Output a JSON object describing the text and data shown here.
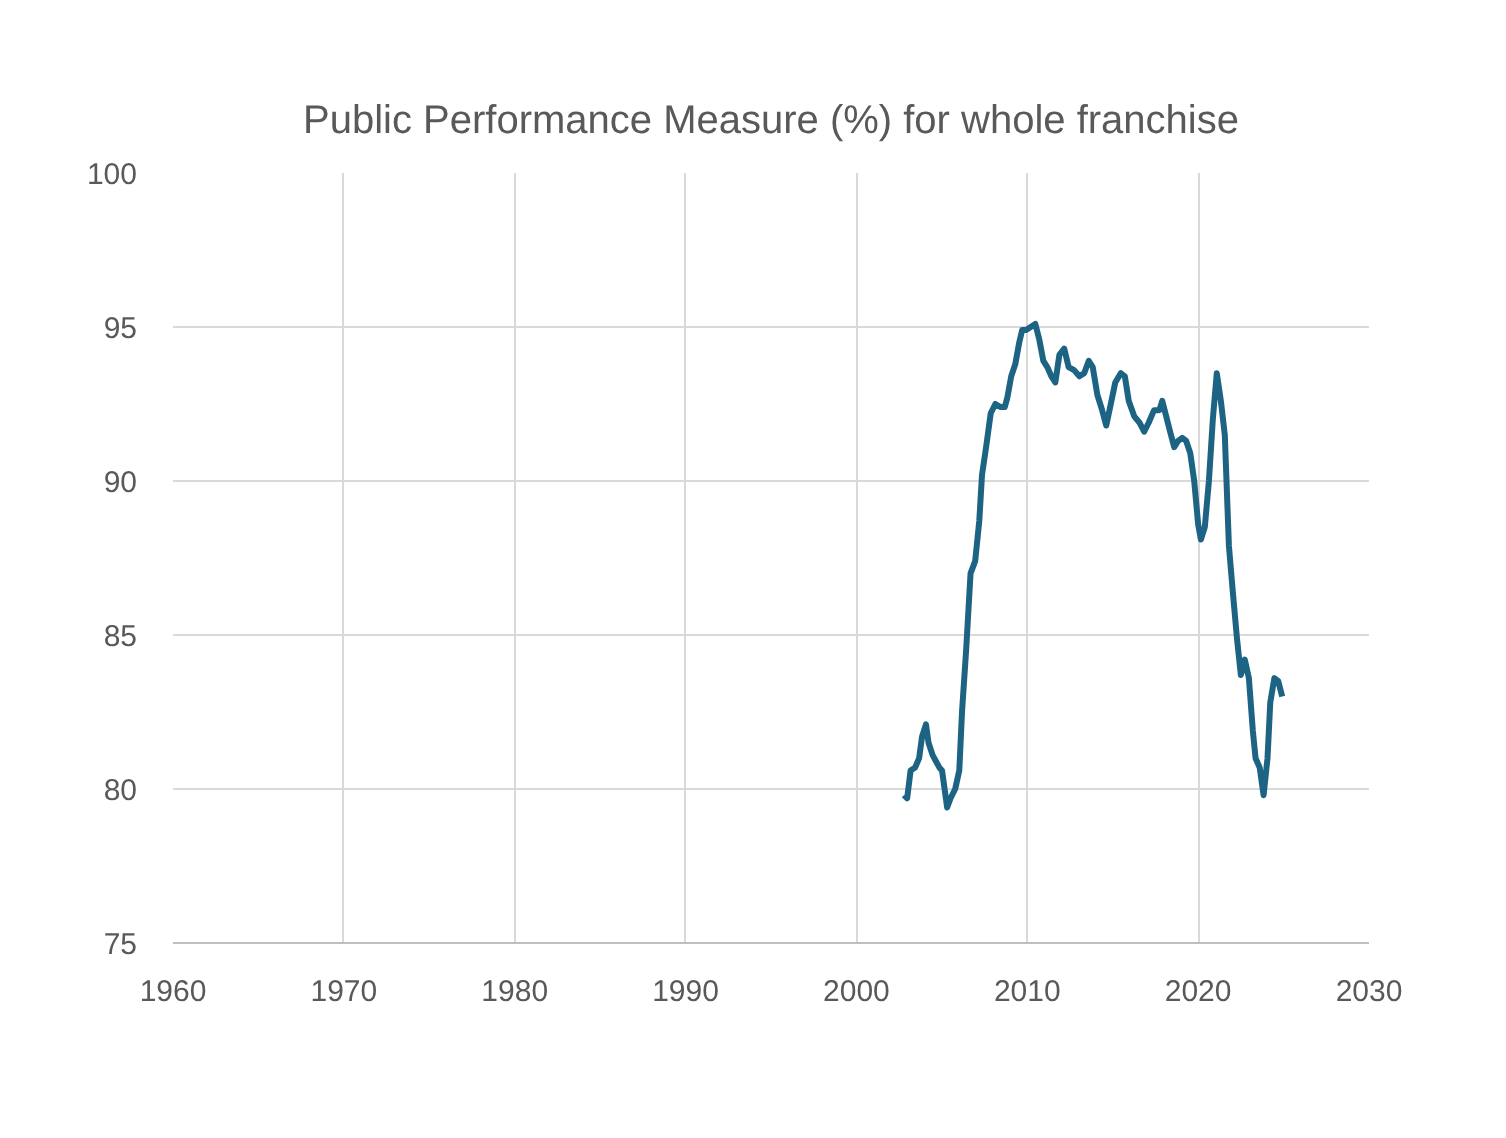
{
  "chart_data": {
    "type": "line",
    "title": "Public Performance Measure (%) for whole franchise",
    "x": [
      2002.78,
      2002.97,
      2003.17,
      2003.44,
      2003.67,
      2003.84,
      2004.07,
      2004.22,
      2004.46,
      2004.85,
      2005.01,
      2005.16,
      2005.31,
      2005.51,
      2005.78,
      2006.02,
      2006.18,
      2006.42,
      2006.68,
      2006.95,
      2007.19,
      2007.35,
      2007.59,
      2007.86,
      2008.13,
      2008.44,
      2008.68,
      2008.83,
      2009.06,
      2009.3,
      2009.53,
      2009.7,
      2009.93,
      2010.2,
      2010.47,
      2010.7,
      2010.94,
      2011.17,
      2011.41,
      2011.64,
      2011.88,
      2012.16,
      2012.42,
      2012.74,
      2013.05,
      2013.33,
      2013.6,
      2013.83,
      2014.1,
      2014.38,
      2014.62,
      2014.85,
      2015.15,
      2015.47,
      2015.71,
      2015.94,
      2016.26,
      2016.56,
      2016.84,
      2017.11,
      2017.42,
      2017.73,
      2017.9,
      2018.13,
      2018.36,
      2018.6,
      2018.83,
      2019.07,
      2019.3,
      2019.54,
      2019.77,
      2020.0,
      2020.16,
      2020.39,
      2020.63,
      2020.86,
      2021.09,
      2021.33,
      2021.56,
      2021.8,
      2022.03,
      2022.27,
      2022.5,
      2022.73,
      2022.97,
      2023.2,
      2023.36,
      2023.6,
      2023.83,
      2024.06,
      2024.22,
      2024.46,
      2024.69,
      2024.92
    ],
    "series": [
      {
        "color": "#1d6484",
        "values": [
          79.8,
          79.7,
          80.6,
          80.7,
          81.0,
          81.7,
          82.1,
          81.5,
          81.1,
          80.7,
          80.6,
          80.0,
          79.4,
          79.7,
          80.0,
          80.6,
          82.5,
          84.5,
          87.0,
          87.4,
          88.7,
          90.2,
          91.1,
          92.2,
          92.5,
          92.4,
          92.4,
          92.7,
          93.4,
          93.8,
          94.5,
          94.9,
          94.9,
          95.0,
          95.1,
          94.6,
          93.9,
          93.7,
          93.4,
          93.2,
          94.1,
          94.3,
          93.7,
          93.6,
          93.4,
          93.5,
          93.9,
          93.7,
          92.8,
          92.3,
          91.8,
          92.4,
          93.2,
          93.5,
          93.4,
          92.6,
          92.1,
          91.9,
          91.6,
          91.9,
          92.3,
          92.3,
          92.6,
          92.1,
          91.6,
          91.1,
          91.3,
          91.4,
          91.3,
          90.9,
          90.0,
          88.6,
          88.1,
          88.5,
          90.0,
          92.0,
          93.5,
          92.6,
          91.5,
          87.9,
          86.4,
          84.9,
          83.7,
          84.2,
          83.6,
          81.9,
          81.0,
          80.7,
          79.8,
          81.0,
          82.8,
          83.6,
          83.5,
          83.0
        ]
      }
    ],
    "xlim": [
      1960,
      2030
    ],
    "xticks": [
      1960,
      1970,
      1980,
      1990,
      2000,
      2010,
      2020,
      2030
    ],
    "ylim": [
      75,
      100
    ],
    "yticks": [
      75,
      80,
      85,
      90,
      95,
      100
    ],
    "grid": true,
    "marker": "none",
    "line_style": "solid"
  }
}
